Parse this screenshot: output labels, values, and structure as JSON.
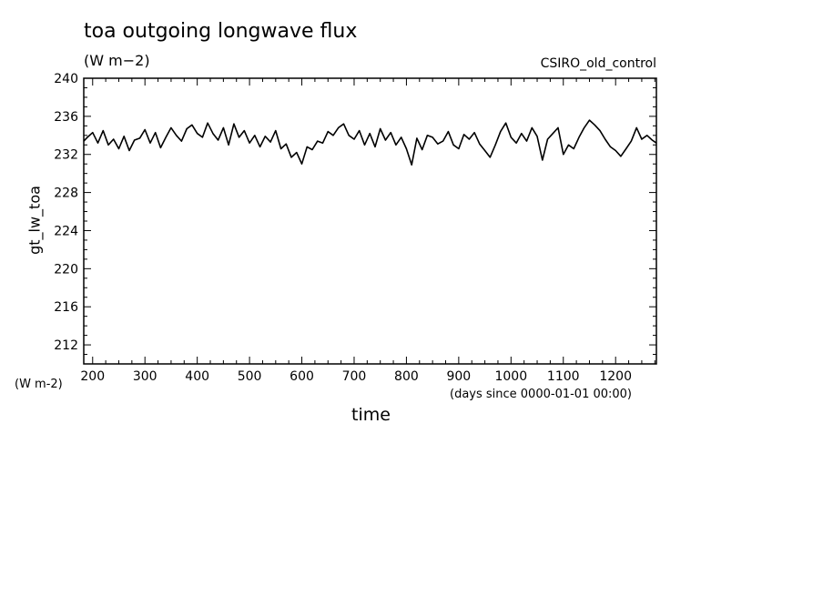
{
  "chart_data": {
    "type": "line",
    "title": "toa outgoing longwave flux",
    "units": "(W m−2)",
    "dataset_label": "CSIRO_old_control",
    "ylabel": "gt_lw_toa",
    "y_units": "(W m-2)",
    "xlabel": "time",
    "x_units": "(days since 0000-01-01 00:00)",
    "xlim": [
      183,
      1278
    ],
    "ylim": [
      210,
      240
    ],
    "x_ticks": [
      200,
      300,
      400,
      500,
      600,
      700,
      800,
      900,
      1000,
      1100,
      1200
    ],
    "y_ticks": [
      212,
      216,
      220,
      224,
      228,
      232,
      236,
      240
    ],
    "grid": false,
    "series": [
      {
        "color": "#000000",
        "x": [
          183,
          190,
          200,
          210,
          220,
          230,
          240,
          250,
          260,
          270,
          280,
          290,
          300,
          310,
          320,
          330,
          340,
          350,
          360,
          370,
          380,
          390,
          400,
          410,
          420,
          430,
          440,
          450,
          460,
          470,
          480,
          490,
          500,
          510,
          520,
          530,
          540,
          550,
          560,
          570,
          580,
          590,
          600,
          610,
          620,
          630,
          640,
          650,
          660,
          670,
          680,
          690,
          700,
          710,
          720,
          730,
          740,
          750,
          760,
          770,
          780,
          790,
          800,
          810,
          820,
          830,
          840,
          850,
          860,
          870,
          880,
          890,
          900,
          910,
          920,
          930,
          940,
          950,
          960,
          970,
          980,
          990,
          1000,
          1010,
          1020,
          1030,
          1040,
          1050,
          1060,
          1070,
          1080,
          1090,
          1100,
          1110,
          1120,
          1130,
          1140,
          1150,
          1160,
          1170,
          1180,
          1190,
          1200,
          1210,
          1220,
          1230,
          1240,
          1250,
          1260,
          1270,
          1278
        ],
        "y": [
          233.4,
          233.8,
          234.3,
          233.2,
          234.5,
          233.0,
          233.6,
          232.6,
          233.9,
          232.4,
          233.5,
          233.7,
          234.6,
          233.2,
          234.3,
          232.7,
          233.8,
          234.8,
          234.0,
          233.4,
          234.7,
          235.1,
          234.2,
          233.8,
          235.3,
          234.2,
          233.5,
          234.8,
          233.0,
          235.2,
          233.8,
          234.5,
          233.2,
          234.0,
          232.8,
          233.9,
          233.3,
          234.5,
          232.6,
          233.1,
          231.7,
          232.2,
          231.0,
          232.8,
          232.5,
          233.4,
          233.2,
          234.4,
          234.0,
          234.8,
          235.2,
          234.0,
          233.6,
          234.5,
          233.0,
          234.2,
          232.8,
          234.7,
          233.5,
          234.3,
          233.0,
          233.8,
          232.6,
          230.9,
          233.7,
          232.5,
          234.0,
          233.8,
          233.1,
          233.4,
          234.4,
          233.0,
          232.6,
          234.1,
          233.6,
          234.3,
          233.1,
          232.4,
          231.7,
          233.0,
          234.4,
          235.3,
          233.8,
          233.2,
          234.2,
          233.4,
          234.8,
          233.9,
          231.4,
          233.6,
          234.2,
          234.8,
          232.0,
          233.0,
          232.6,
          233.8,
          234.8,
          235.6,
          235.1,
          234.5,
          233.6,
          232.8,
          232.4,
          231.8,
          232.6,
          233.4,
          234.8,
          233.6,
          234.0,
          233.5,
          233.2
        ]
      }
    ]
  }
}
